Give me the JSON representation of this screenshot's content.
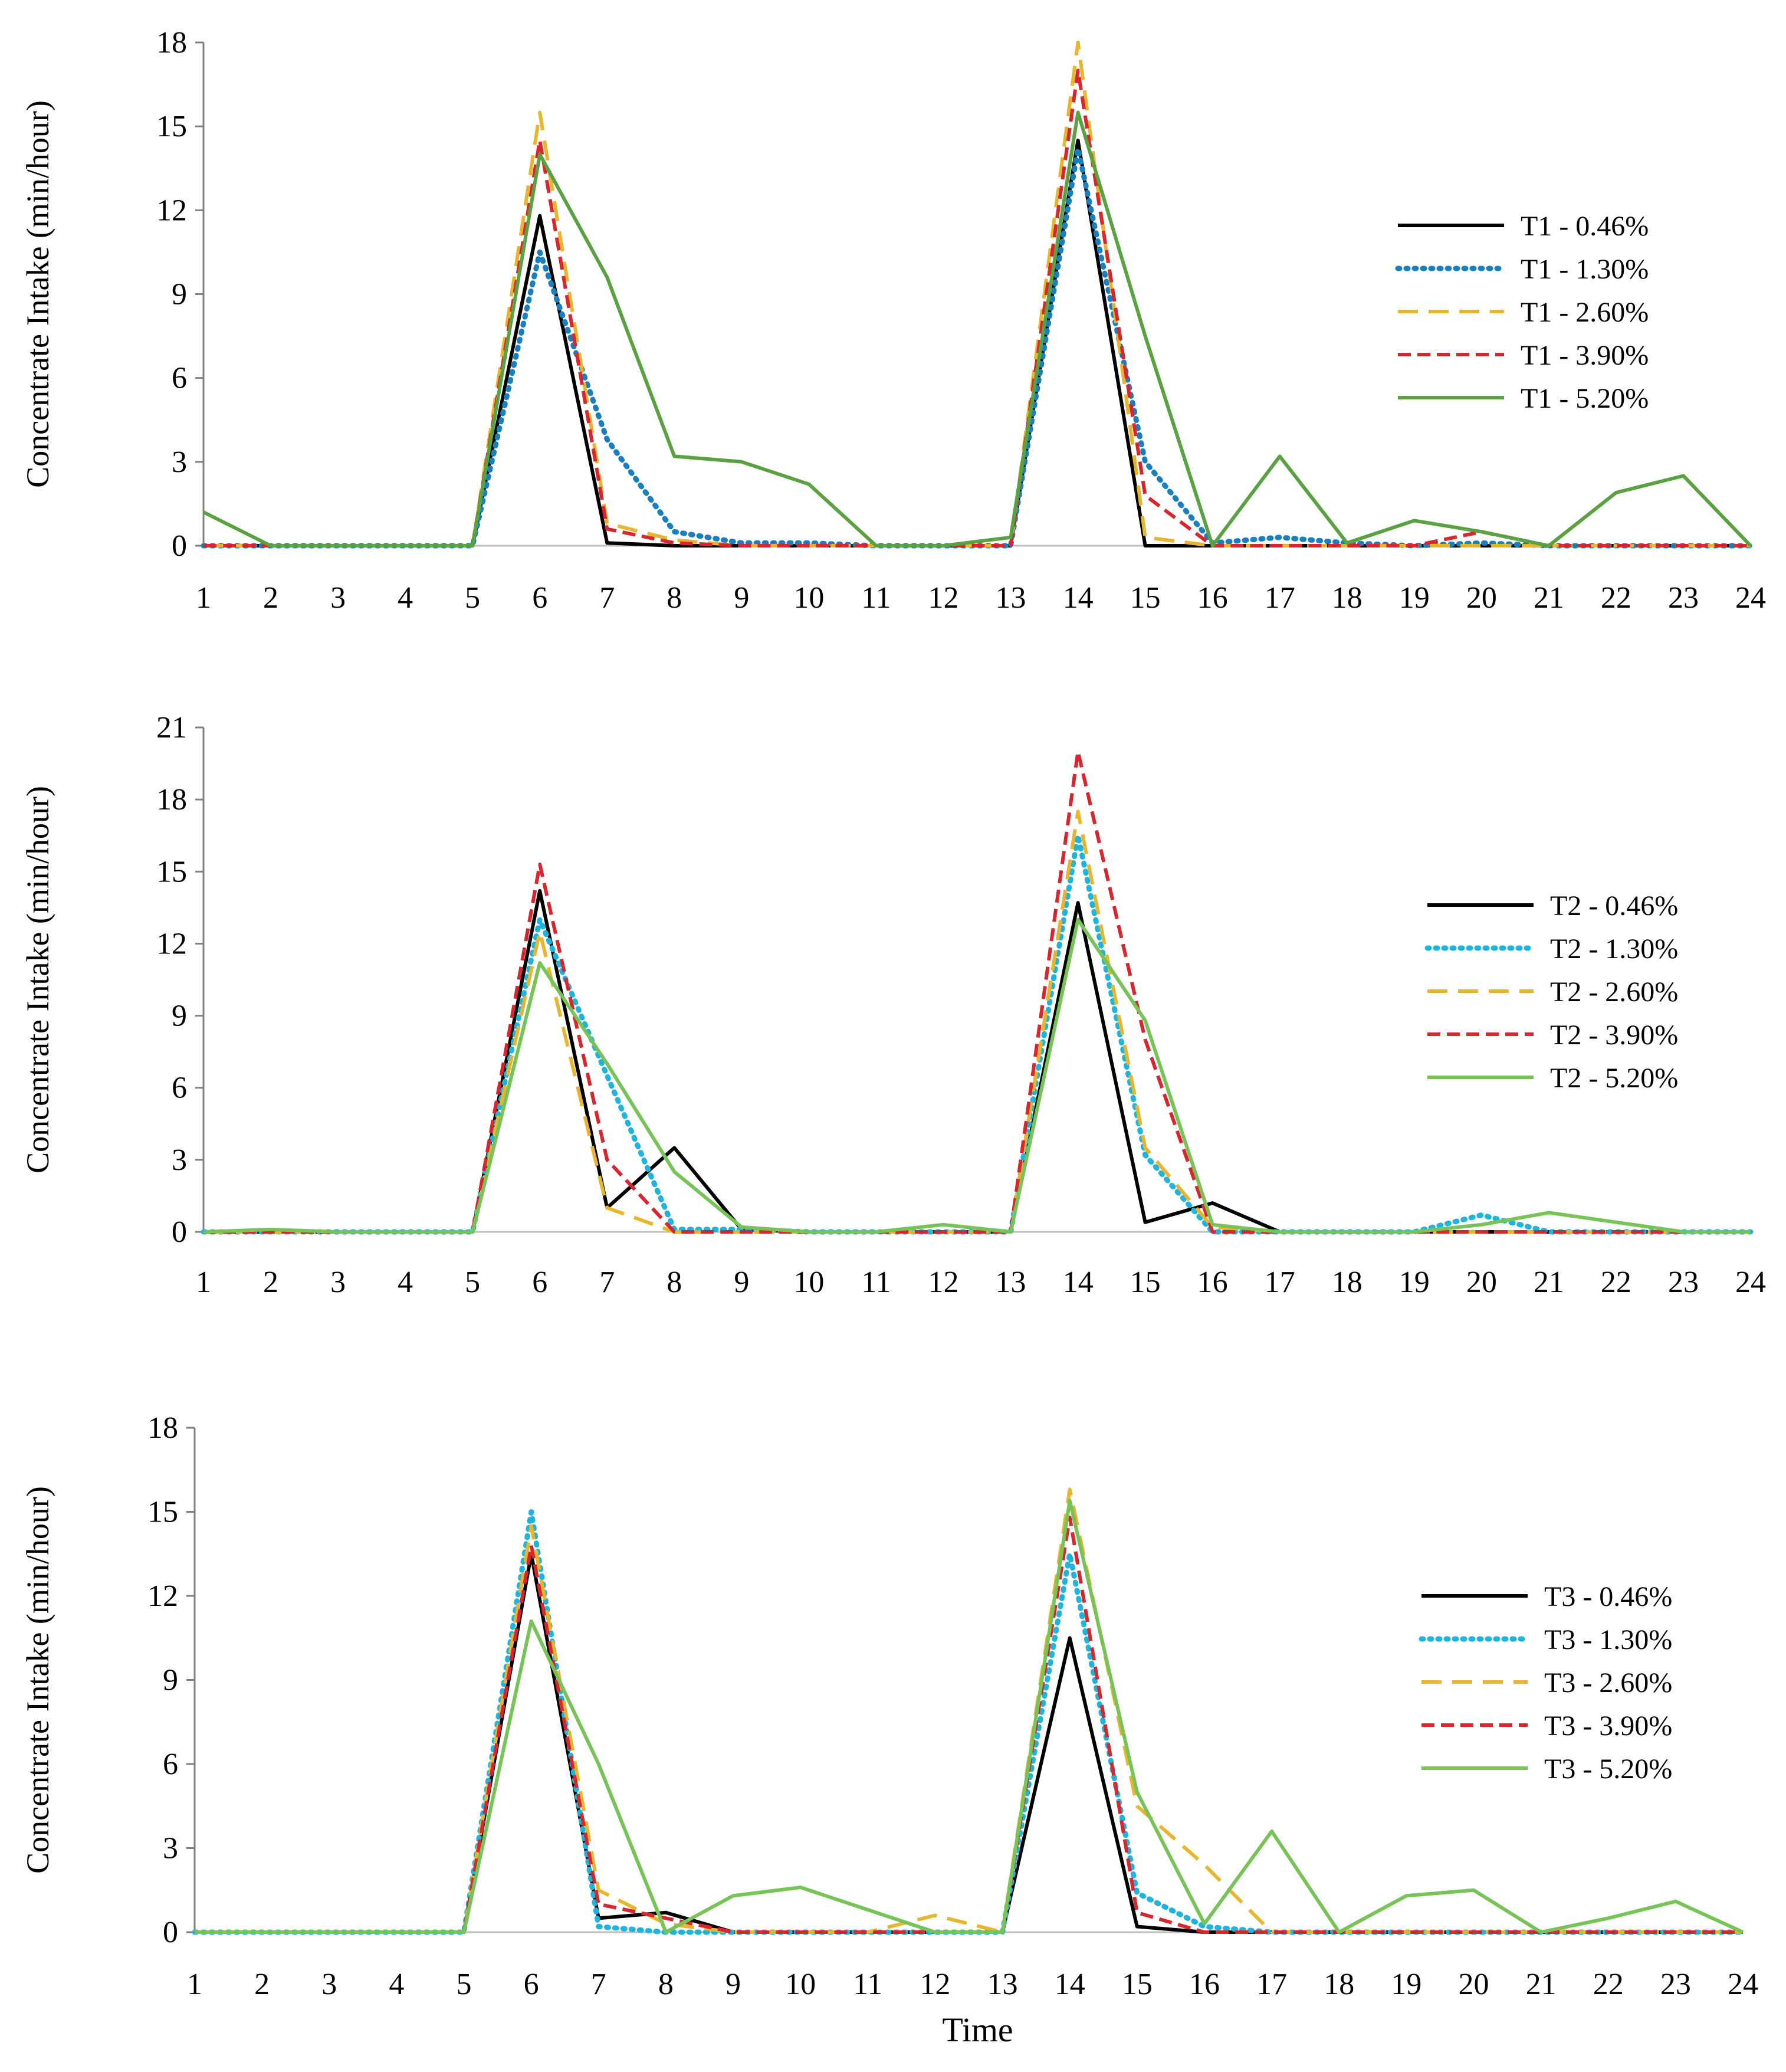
{
  "chart_data": [
    {
      "type": "line",
      "panel": "T1",
      "title": "",
      "xlabel": "",
      "ylabel": "Concentrate Intake (min/hour)",
      "ylim": [
        0,
        18
      ],
      "yticks": [
        0,
        3,
        6,
        9,
        12,
        15,
        18
      ],
      "x": [
        1,
        2,
        3,
        4,
        5,
        6,
        7,
        8,
        9,
        10,
        11,
        12,
        13,
        14,
        15,
        16,
        17,
        18,
        19,
        20,
        21,
        22,
        23,
        24
      ],
      "legend_position": "right",
      "series": [
        {
          "name": "T1 - 0.46%",
          "color": "#000000",
          "style": "solid",
          "values": [
            0,
            0,
            0,
            0,
            0,
            11.8,
            0.1,
            0,
            0,
            0,
            0,
            0,
            0,
            14.5,
            0,
            0,
            0,
            0,
            0,
            0,
            0,
            0,
            0,
            0
          ]
        },
        {
          "name": "T1 - 1.30%",
          "color": "#1a7fbf",
          "style": "dotted",
          "values": [
            0,
            0,
            0,
            0,
            0,
            10.5,
            3.8,
            0.5,
            0.1,
            0.1,
            0,
            0,
            0,
            14.2,
            3.0,
            0.1,
            0.3,
            0.1,
            0,
            0.1,
            0,
            0,
            0,
            0
          ]
        },
        {
          "name": "T1 - 2.60%",
          "color": "#e8b52e",
          "style": "dashed",
          "values": [
            0,
            0,
            0,
            0,
            0,
            15.5,
            0.8,
            0.2,
            0,
            0,
            0,
            0,
            0,
            18,
            0.3,
            0,
            0,
            0,
            0,
            0,
            0,
            0,
            0,
            0
          ]
        },
        {
          "name": "T1 - 3.90%",
          "color": "#d7262e",
          "style": "shortdash",
          "values": [
            0,
            0,
            0,
            0,
            0,
            14.5,
            0.6,
            0.1,
            0,
            0,
            0,
            0,
            0,
            17,
            1.8,
            0,
            0,
            0,
            0,
            0.5,
            0,
            0,
            0,
            0
          ]
        },
        {
          "name": "T1 - 5.20%",
          "color": "#5aa142",
          "style": "solid",
          "values": [
            1.2,
            0,
            0,
            0,
            0,
            14,
            9.6,
            3.2,
            3.0,
            2.2,
            0,
            0,
            0.3,
            15.5,
            7.5,
            0,
            3.2,
            0.1,
            0.9,
            0.5,
            0,
            1.9,
            2.5,
            0
          ]
        }
      ]
    },
    {
      "type": "line",
      "panel": "T2",
      "title": "",
      "xlabel": "",
      "ylabel": "Concentrate Intake (min/hour)",
      "ylim": [
        0,
        21
      ],
      "yticks": [
        0,
        3,
        6,
        9,
        12,
        15,
        18,
        21
      ],
      "x": [
        1,
        2,
        3,
        4,
        5,
        6,
        7,
        8,
        9,
        10,
        11,
        12,
        13,
        14,
        15,
        16,
        17,
        18,
        19,
        20,
        21,
        22,
        23,
        24
      ],
      "legend_position": "right",
      "series": [
        {
          "name": "T2 - 0.46%",
          "color": "#000000",
          "style": "solid",
          "values": [
            0,
            0,
            0,
            0,
            0,
            14.2,
            1.0,
            3.5,
            0.1,
            0,
            0,
            0,
            0,
            13.7,
            0.4,
            1.2,
            0,
            0,
            0,
            0,
            0,
            0,
            0,
            0
          ]
        },
        {
          "name": "T2 - 1.30%",
          "color": "#1fb4dc",
          "style": "dotted",
          "values": [
            0,
            0,
            0,
            0,
            0,
            13,
            6.5,
            0.1,
            0.1,
            0,
            0,
            0,
            0,
            16.5,
            3.2,
            0,
            0,
            0,
            0,
            0.7,
            0,
            0,
            0,
            0
          ]
        },
        {
          "name": "T2 - 2.60%",
          "color": "#e8b52e",
          "style": "dashed",
          "values": [
            0,
            0,
            0,
            0,
            0,
            12.5,
            1.0,
            0,
            0,
            0,
            0,
            0,
            0,
            17.5,
            3.5,
            0.2,
            0,
            0,
            0,
            0,
            0,
            0,
            0,
            0
          ]
        },
        {
          "name": "T2 - 3.90%",
          "color": "#d7262e",
          "style": "shortdash",
          "values": [
            0,
            0,
            0,
            0,
            0,
            15.3,
            3.0,
            0,
            0,
            0,
            0,
            0,
            0,
            20.0,
            8.0,
            0,
            0,
            0,
            0,
            0,
            0,
            0,
            0,
            0
          ]
        },
        {
          "name": "T2 - 5.20%",
          "color": "#77c357",
          "style": "solid",
          "values": [
            0,
            0.1,
            0,
            0,
            0,
            11.2,
            7.0,
            2.5,
            0.2,
            0,
            0,
            0.3,
            0,
            13.0,
            8.8,
            0.3,
            0,
            0,
            0,
            0.3,
            0.8,
            0.4,
            0,
            0
          ]
        }
      ]
    },
    {
      "type": "line",
      "panel": "T3",
      "title": "",
      "xlabel": "Time",
      "ylabel": "Concentrate Intake (min/hour)",
      "ylim": [
        0,
        18
      ],
      "yticks": [
        0,
        3,
        6,
        9,
        12,
        15,
        18
      ],
      "x": [
        1,
        2,
        3,
        4,
        5,
        6,
        7,
        8,
        9,
        10,
        11,
        12,
        13,
        14,
        15,
        16,
        17,
        18,
        19,
        20,
        21,
        22,
        23,
        24
      ],
      "legend_position": "right",
      "series": [
        {
          "name": "T3 - 0.46%",
          "color": "#000000",
          "style": "solid",
          "values": [
            0,
            0,
            0,
            0,
            0,
            13.5,
            0.5,
            0.7,
            0,
            0,
            0,
            0,
            0,
            10.5,
            0.2,
            0,
            0,
            0,
            0,
            0,
            0,
            0,
            0,
            0
          ]
        },
        {
          "name": "T3 - 1.30%",
          "color": "#1fb4dc",
          "style": "dotted",
          "values": [
            0,
            0,
            0,
            0,
            0,
            15.0,
            0.2,
            0,
            0,
            0,
            0,
            0,
            0,
            13.5,
            1.4,
            0.2,
            0,
            0,
            0,
            0,
            0,
            0,
            0,
            0
          ]
        },
        {
          "name": "T3 - 2.60%",
          "color": "#e8b52e",
          "style": "dashed",
          "values": [
            0,
            0,
            0,
            0,
            0,
            14.5,
            1.5,
            0.3,
            0,
            0,
            0,
            0.6,
            0,
            15.8,
            4.5,
            2.4,
            0,
            0,
            0,
            0,
            0,
            0,
            0,
            0
          ]
        },
        {
          "name": "T3 - 3.90%",
          "color": "#d7262e",
          "style": "shortdash",
          "values": [
            0,
            0,
            0,
            0,
            0,
            13.8,
            1.0,
            0.5,
            0,
            0,
            0,
            0,
            0,
            14.8,
            0.7,
            0,
            0,
            0,
            0,
            0,
            0,
            0,
            0,
            0
          ]
        },
        {
          "name": "T3 - 5.20%",
          "color": "#77c357",
          "style": "solid",
          "values": [
            0,
            0,
            0,
            0,
            0,
            11.1,
            6.0,
            0,
            1.3,
            1.6,
            0.8,
            0,
            0,
            15.4,
            5.0,
            0.3,
            3.6,
            0,
            1.3,
            1.5,
            0,
            0.5,
            1.1,
            0
          ]
        }
      ]
    }
  ]
}
